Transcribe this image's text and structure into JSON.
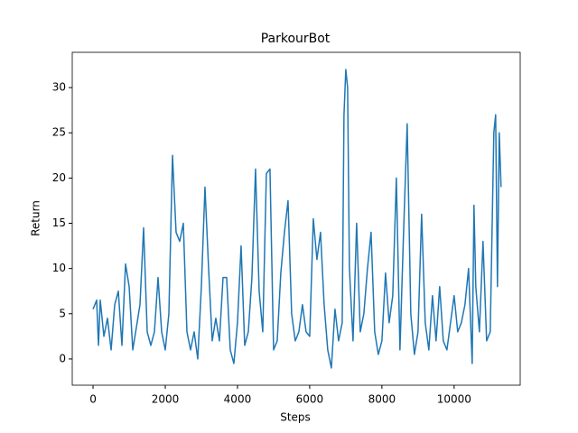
{
  "chart_data": {
    "type": "line",
    "title": "ParkourBot",
    "xlabel": "Steps",
    "ylabel": "Return",
    "x": [
      0,
      100,
      150,
      200,
      300,
      400,
      500,
      600,
      700,
      800,
      900,
      1000,
      1100,
      1200,
      1300,
      1400,
      1500,
      1600,
      1700,
      1800,
      1900,
      2000,
      2100,
      2200,
      2300,
      2400,
      2500,
      2600,
      2700,
      2800,
      2900,
      3000,
      3100,
      3200,
      3300,
      3400,
      3500,
      3600,
      3700,
      3800,
      3900,
      4000,
      4100,
      4200,
      4300,
      4400,
      4500,
      4600,
      4700,
      4800,
      4900,
      5000,
      5100,
      5200,
      5300,
      5400,
      5500,
      5600,
      5700,
      5800,
      5900,
      6000,
      6100,
      6200,
      6300,
      6400,
      6500,
      6600,
      6700,
      6800,
      6900,
      6950,
      7000,
      7050,
      7100,
      7200,
      7300,
      7400,
      7500,
      7600,
      7700,
      7800,
      7900,
      8000,
      8100,
      8200,
      8300,
      8400,
      8500,
      8600,
      8700,
      8800,
      8900,
      9000,
      9100,
      9200,
      9300,
      9400,
      9500,
      9600,
      9700,
      9800,
      9900,
      10000,
      10100,
      10200,
      10300,
      10400,
      10500,
      10550,
      10600,
      10700,
      10800,
      10900,
      11000,
      11100,
      11150,
      11200,
      11250,
      11300
    ],
    "series": [
      {
        "name": "Return",
        "color": "#1f77b4",
        "values": [
          5.5,
          6.5,
          1.5,
          6.5,
          2.5,
          4.5,
          1,
          6,
          7.5,
          1.5,
          10.5,
          8,
          1,
          3.5,
          6,
          14.5,
          3,
          1.5,
          3,
          9,
          3,
          1,
          5,
          22.5,
          14,
          13,
          15,
          3,
          1,
          3,
          0,
          8,
          19,
          10,
          2,
          4.5,
          2,
          9,
          9,
          1,
          -0.5,
          4,
          12.5,
          1.5,
          3,
          9,
          21,
          7.5,
          3,
          20.5,
          21,
          1,
          2,
          9.5,
          14,
          17.5,
          5,
          2,
          3,
          6,
          3,
          2.5,
          15.5,
          11,
          14,
          6,
          1,
          -1,
          5.5,
          2,
          4,
          27,
          32,
          30,
          10,
          2,
          15,
          3,
          5,
          10,
          14,
          3,
          0.5,
          2,
          9.5,
          4,
          7,
          20,
          1,
          14,
          26,
          5,
          0.5,
          3,
          16,
          4,
          1,
          7,
          2,
          8,
          2,
          1,
          4,
          7,
          3,
          4,
          6,
          10,
          -0.5,
          17,
          8,
          3,
          13,
          2,
          3,
          25,
          27,
          8,
          25,
          19
        ]
      }
    ],
    "xlim": [
      -576,
      11830
    ],
    "ylim": [
      -2.9,
      33.9
    ],
    "xticks": [
      0,
      2000,
      4000,
      6000,
      8000,
      10000
    ],
    "yticks": [
      0,
      5,
      10,
      15,
      20,
      25,
      30
    ]
  }
}
